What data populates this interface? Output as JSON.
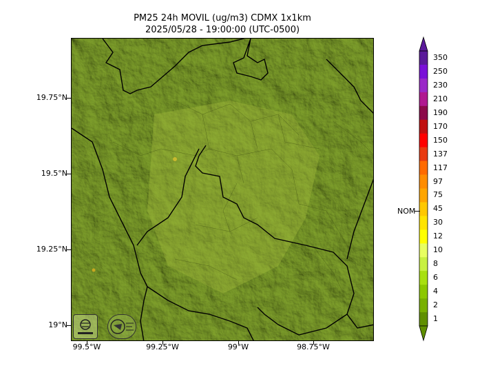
{
  "title": {
    "line1": "PM25 24h MOVIL (ug/m3) CDMX 1x1km",
    "line2": "2025/05/28 - 19:00:00 (UTC-0500)"
  },
  "map": {
    "lat_labels": [
      "19.75°N",
      "19.5°N",
      "19.25°N",
      "19°N"
    ],
    "lon_labels": [
      "99.5°W",
      "99.25°W",
      "99°W",
      "98.75°W"
    ],
    "base_color": "#7a9a2a",
    "boundary_color": "#000000",
    "logo_left": "sedema-logo-icon",
    "logo_right": "inventory-seal-icon"
  },
  "colorbar": {
    "labels": [
      "350",
      "250",
      "230",
      "210",
      "190",
      "170",
      "150",
      "137",
      "117",
      "97",
      "75",
      "45",
      "30",
      "12",
      "10",
      "8",
      "6",
      "4",
      "2",
      "1"
    ],
    "colors": [
      "#5a1a9a",
      "#7a10d8",
      "#9a28c8",
      "#b01890",
      "#8c0a4a",
      "#c01010",
      "#ff0000",
      "#e83a10",
      "#ff6a00",
      "#ff8c00",
      "#ffa500",
      "#ffc800",
      "#ffe400",
      "#ffff00",
      "#e8ff60",
      "#c8f040",
      "#a8e010",
      "#8cc800",
      "#78b000",
      "#5f8f00"
    ],
    "nom_label": "NOM"
  }
}
